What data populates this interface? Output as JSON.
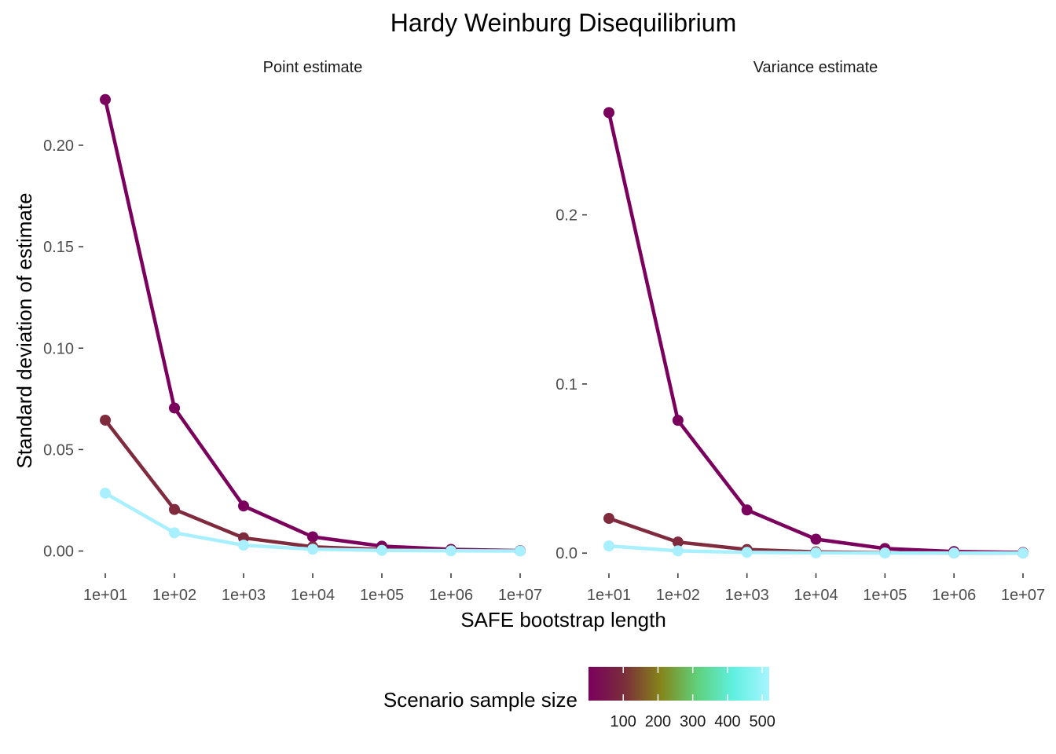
{
  "chart_data": {
    "type": "line",
    "title": "Hardy Weinburg Disequilibrium",
    "xlabel": "SAFE bootstrap length",
    "ylabel": "Standard deviation of estimate",
    "x_scale": "log10",
    "x": [
      10,
      100,
      1000,
      10000,
      100000,
      1000000,
      10000000
    ],
    "x_tick_labels": [
      "1e+01",
      "1e+02",
      "1e+03",
      "1e+04",
      "1e+05",
      "1e+06",
      "1e+07"
    ],
    "grid": false,
    "legend": {
      "title": "Scenario sample size",
      "type": "colorbar",
      "placement": "bottom",
      "range": [
        0,
        520
      ],
      "ticks": [
        100,
        200,
        300,
        400,
        500
      ],
      "tick_labels": [
        "100",
        "200",
        "300",
        "400",
        "500"
      ],
      "colors": [
        "#7b005e",
        "#7a2e3a",
        "#85851a",
        "#5fd07a",
        "#5ff0e0",
        "#a8f4ff"
      ]
    },
    "panels": [
      {
        "strip": "Point estimate",
        "ylim": [
          -0.011,
          0.229
        ],
        "y_ticks": [
          0,
          0.05,
          0.1,
          0.15,
          0.2
        ],
        "y_tick_labels": [
          "0.00",
          "0.05",
          "0.10",
          "0.15",
          "0.20"
        ],
        "series": [
          {
            "sample_size": 10,
            "color": "#7b005e",
            "values": [
              0.2225,
              0.0705,
              0.0222,
              0.007,
              0.0024,
              0.0008,
              0.0002
            ]
          },
          {
            "sample_size": 100,
            "color": "#7f2a3d",
            "values": [
              0.0645,
              0.0205,
              0.0065,
              0.0021,
              0.0007,
              0.0003,
              0.0001
            ]
          },
          {
            "sample_size": 500,
            "color": "#a8f0ff",
            "values": [
              0.0285,
              0.009,
              0.0029,
              0.0009,
              0.0003,
              0.0001,
              5e-05
            ]
          }
        ]
      },
      {
        "strip": "Variance estimate",
        "ylim": [
          -0.012,
          0.276
        ],
        "y_ticks": [
          0,
          0.1,
          0.2
        ],
        "y_tick_labels": [
          "0.0",
          "0.1",
          "0.2"
        ],
        "series": [
          {
            "sample_size": 10,
            "color": "#7b005e",
            "values": [
              0.2605,
              0.0785,
              0.0255,
              0.0082,
              0.0027,
              0.0009,
              0.0003
            ]
          },
          {
            "sample_size": 100,
            "color": "#7f2a3d",
            "values": [
              0.0205,
              0.0065,
              0.0021,
              0.0007,
              0.0002,
              0.0001,
              3e-05
            ]
          },
          {
            "sample_size": 500,
            "color": "#a8f0ff",
            "values": [
              0.0042,
              0.0013,
              0.0004,
              0.00013,
              4e-05,
              1e-05,
              5e-06
            ]
          }
        ]
      }
    ]
  }
}
